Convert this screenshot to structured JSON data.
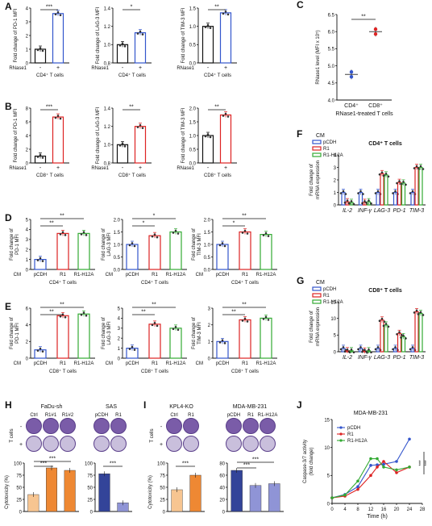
{
  "panels": {
    "A": {
      "label": "A",
      "yl": [
        "Fold change of PD-1 MFI",
        "Fold change of LAG-3 MFI",
        "Fold change of TIM-3 MFI"
      ],
      "sig": [
        "***",
        "*",
        "**"
      ],
      "cell": "CD4⁺ T cells",
      "row_label": "RNase1",
      "minus": "-",
      "plus": "+",
      "ticks1": [
        "0",
        "1",
        "2",
        "3",
        "4"
      ],
      "ticks2": [
        "0.8",
        "1.0",
        "1.2",
        "1.4"
      ],
      "ticks3": [
        "0.0",
        "0.5",
        "1.0",
        "1.5"
      ],
      "values": [
        [
          1,
          3.6
        ],
        [
          1.0,
          1.13
        ],
        [
          1.0,
          1.37
        ]
      ]
    },
    "B": {
      "label": "B",
      "yl": [
        "Fold change of PD-1 MFI",
        "Fold change of LAG-3 MFI",
        "Fold change of TIM-3 MFI"
      ],
      "sig": [
        "***",
        "**",
        "**"
      ],
      "cell": "CD8⁺ T cells",
      "row_label": "RNase1",
      "minus": "-",
      "plus": "+",
      "ticks1": [
        "0",
        "2",
        "4",
        "6",
        "8"
      ],
      "ticks2": [
        "0.8",
        "1.0",
        "1.2",
        "1.4"
      ],
      "ticks3": [
        "0.0",
        "0.5",
        "1.0",
        "1.5",
        "2.0"
      ],
      "values": [
        [
          1,
          6.7
        ],
        [
          1.0,
          1.2
        ],
        [
          1.0,
          1.75
        ]
      ]
    },
    "C": {
      "label": "C",
      "ylabel": "RNase1 level (MFI x 10⁵)",
      "ticks": [
        "4.0",
        "4.5",
        "5.0",
        "5.5",
        "6.0",
        "6.5"
      ],
      "cats": [
        "CD4⁺",
        "CD8⁺"
      ],
      "xlabel": "RNase1-treated T cells",
      "sig": "**",
      "values": [
        4.75,
        6.0
      ]
    },
    "D": {
      "label": "D",
      "yl": [
        [
          "Fold change of",
          "PD-1 MFI"
        ],
        [
          "Fold change of",
          "LAG-3 MFI"
        ],
        [
          "Fold change of",
          "TIM-3 MFI"
        ]
      ],
      "cats": [
        "pCDH",
        "R1",
        "R1-H12A"
      ],
      "cm": "CM",
      "cell": "CD4⁺ T cells",
      "ticks1": [
        "0",
        "1",
        "2",
        "3",
        "4",
        "5"
      ],
      "ticks2": [
        "0.0",
        "0.5",
        "1.0",
        "1.5",
        "2.0"
      ],
      "ticks3": [
        "0.0",
        "0.5",
        "1.0",
        "1.5",
        "2.0"
      ],
      "sig1": [
        "**",
        "**"
      ],
      "sig2": [
        "*",
        "*"
      ],
      "sig3": [
        "**",
        "*"
      ],
      "values": [
        [
          1,
          3.6,
          3.6
        ],
        [
          1.0,
          1.35,
          1.5
        ],
        [
          1.0,
          1.5,
          1.4
        ]
      ]
    },
    "E": {
      "label": "E",
      "yl": [
        [
          "Fold change of",
          "PD-1 MFI"
        ],
        [
          "Fold change of",
          "LAG-3 MFI"
        ],
        [
          "Fold change of",
          "TIM-3 MFI"
        ]
      ],
      "cats": [
        "pCDH",
        "R1",
        "R1-H12A"
      ],
      "cm": "CM",
      "cell": "CD8⁺ T cells",
      "ticks1": [
        "0",
        "2",
        "4",
        "6"
      ],
      "ticks2": [
        "0",
        "1",
        "2",
        "3",
        "4",
        "5"
      ],
      "ticks3": [
        "0",
        "1",
        "2",
        "3"
      ],
      "sig1": [
        "**",
        "**"
      ],
      "sig2": [
        "**",
        "**"
      ],
      "sig3": [
        "**",
        "**"
      ],
      "values": [
        [
          1,
          5.1,
          5.3
        ],
        [
          1,
          3.4,
          3.0
        ],
        [
          1,
          2.3,
          2.4
        ]
      ]
    },
    "F": {
      "label": "F",
      "ylabel": [
        "Fold change of",
        "mRNA expression"
      ],
      "legend_title": "CM",
      "legend": [
        "pCDH",
        "R1",
        "R1-H12A"
      ],
      "title": "CD4⁺ T cells",
      "ticks": [
        "0",
        "1",
        "2",
        "3",
        "4"
      ],
      "genes": [
        "IL-2",
        "INF-γ",
        "LAG-3",
        "PD-1",
        "TIM-3"
      ],
      "values": [
        [
          1,
          0.25,
          0.2
        ],
        [
          1,
          0.2,
          0.25
        ],
        [
          1,
          2.5,
          2.4
        ],
        [
          1,
          1.8,
          1.75
        ],
        [
          1,
          3.0,
          3.0
        ]
      ]
    },
    "G": {
      "label": "G",
      "ylabel": [
        "Fold change of",
        "mRNA expression"
      ],
      "legend_title": "CM",
      "legend": [
        "pCDH",
        "R1",
        "R1-H12A"
      ],
      "title": "CD8⁺ T cells",
      "ticks": [
        "0",
        "5",
        "10",
        "15"
      ],
      "genes": [
        "IL-2",
        "INF-γ",
        "LAG-3",
        "PD-1",
        "TIM-3"
      ],
      "values": [
        [
          1,
          0.3,
          0.3
        ],
        [
          1,
          0.2,
          0.3
        ],
        [
          1,
          9.5,
          8.0
        ],
        [
          1,
          5.5,
          4.5
        ],
        [
          1,
          12.0,
          11.5
        ]
      ]
    },
    "H": {
      "label": "H",
      "title1": "FaDu-sh",
      "title2": "SAS",
      "cols1": [
        "Ctrl",
        "R1#1",
        "R1#2"
      ],
      "cols2": [
        "pCDH",
        "R1"
      ],
      "rowlab": "T cells",
      "minus": "-",
      "plus": "+",
      "ylabel": "Cytotoxicity (%)",
      "ticks": [
        "0",
        "25",
        "50",
        "75",
        "100"
      ],
      "sig": [
        "***",
        "***",
        "***"
      ],
      "v1": [
        35,
        90,
        85
      ],
      "v2": [
        78,
        18
      ]
    },
    "I": {
      "label": "I",
      "title1": "KPL4-KO",
      "title2": "MDA-MB-231",
      "cols1": [
        "Ctrl",
        "R1"
      ],
      "cols2": [
        "pCDH",
        "R1",
        "R1-H12A"
      ],
      "rowlab": "T cells",
      "minus": "-",
      "plus": "+",
      "ylabel": "Cytotoxicity (%)",
      "ticks1": [
        "0",
        "25",
        "50",
        "75",
        "100"
      ],
      "ticks2": [
        "0",
        "20",
        "40",
        "60",
        "80"
      ],
      "sig": [
        "***",
        "***",
        "***"
      ],
      "v1": [
        45,
        75
      ],
      "v2": [
        68,
        43,
        46
      ]
    },
    "J": {
      "label": "J",
      "title": "MDA-MB-231",
      "ylabel": [
        "Caspase-3/7 activity",
        "(fold change)"
      ],
      "xlabel": "Time (h)",
      "yticks": [
        "0",
        "5",
        "10",
        "15"
      ],
      "xticks": [
        "0",
        "4",
        "8",
        "12",
        "16",
        "20",
        "24",
        "28"
      ],
      "legend": [
        "pCDH",
        "R1",
        "R1-H12A"
      ],
      "sig": [
        "***",
        "***"
      ]
    }
  },
  "chart_data": [
    {
      "type": "line",
      "title": "MDA-MB-231",
      "xlabel": "Time (h)",
      "ylabel": "Caspase-3/7 activity (fold change)",
      "x": [
        0,
        4,
        8,
        12,
        14,
        16,
        20,
        24
      ],
      "series": [
        {
          "name": "pCDH",
          "values": [
            1,
            1.6,
            3.0,
            6.8,
            6.9,
            7.0,
            7.5,
            11.5
          ]
        },
        {
          "name": "R1",
          "values": [
            1,
            1.3,
            2.5,
            5.0,
            6.5,
            7.5,
            5.5,
            6.5
          ]
        },
        {
          "name": "R1-H12A",
          "values": [
            1,
            1.5,
            4.0,
            8.0,
            8.0,
            6.5,
            6.0,
            6.5
          ]
        }
      ],
      "ylim": [
        0,
        15
      ],
      "xlim": [
        0,
        28
      ]
    }
  ],
  "colors": {
    "black": "#111111",
    "blue": "#3355cc",
    "red": "#dd2222",
    "green": "#33aa33",
    "orange": "#ee8833",
    "lightorange": "#f7c591",
    "navy": "#334499",
    "lavender": "#8f94d6",
    "well": "#7a5ca8"
  }
}
